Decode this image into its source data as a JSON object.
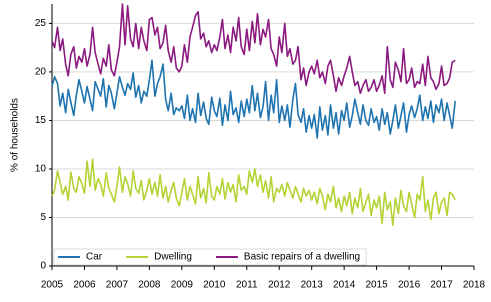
{
  "chart_data": {
    "type": "line",
    "y_label": "% of households",
    "x": [
      2005.0,
      2005.08,
      2005.17,
      2005.25,
      2005.33,
      2005.42,
      2005.5,
      2005.58,
      2005.67,
      2005.75,
      2005.83,
      2005.92,
      2006.0,
      2006.08,
      2006.17,
      2006.25,
      2006.33,
      2006.42,
      2006.5,
      2006.58,
      2006.67,
      2006.75,
      2006.83,
      2006.92,
      2007.0,
      2007.08,
      2007.17,
      2007.25,
      2007.33,
      2007.42,
      2007.5,
      2007.58,
      2007.67,
      2007.75,
      2007.83,
      2007.92,
      2008.0,
      2008.08,
      2008.17,
      2008.25,
      2008.33,
      2008.42,
      2008.5,
      2008.58,
      2008.67,
      2008.75,
      2008.83,
      2008.92,
      2009.0,
      2009.08,
      2009.17,
      2009.25,
      2009.33,
      2009.42,
      2009.5,
      2009.58,
      2009.67,
      2009.75,
      2009.83,
      2009.92,
      2010.0,
      2010.08,
      2010.17,
      2010.25,
      2010.33,
      2010.42,
      2010.5,
      2010.58,
      2010.67,
      2010.75,
      2010.83,
      2010.92,
      2011.0,
      2011.08,
      2011.17,
      2011.25,
      2011.33,
      2011.42,
      2011.5,
      2011.58,
      2011.67,
      2011.75,
      2011.83,
      2011.92,
      2012.0,
      2012.08,
      2012.17,
      2012.25,
      2012.33,
      2012.42,
      2012.5,
      2012.58,
      2012.67,
      2012.75,
      2012.83,
      2012.92,
      2013.0,
      2013.08,
      2013.17,
      2013.25,
      2013.33,
      2013.42,
      2013.5,
      2013.58,
      2013.67,
      2013.75,
      2013.83,
      2013.92,
      2014.0,
      2014.08,
      2014.17,
      2014.25,
      2014.33,
      2014.42,
      2014.5,
      2014.58,
      2014.67,
      2014.75,
      2014.83,
      2014.92,
      2015.0,
      2015.08,
      2015.17,
      2015.25,
      2015.33,
      2015.42,
      2015.5,
      2015.58,
      2015.67,
      2015.75,
      2015.83,
      2015.92,
      2016.0,
      2016.08,
      2016.17,
      2016.25,
      2016.33,
      2016.42,
      2016.5,
      2016.58,
      2016.67,
      2016.75,
      2016.83,
      2016.92,
      2017.0,
      2017.08,
      2017.17,
      2017.25,
      2017.33,
      2017.42
    ],
    "series": [
      {
        "name": "Car",
        "color": "#1f74b0",
        "values": [
          18.5,
          19.5,
          18.8,
          16.5,
          17.8,
          15.8,
          18.2,
          16.9,
          15.5,
          17.6,
          19.2,
          18.0,
          16.8,
          18.5,
          17.2,
          16.0,
          19.0,
          18.2,
          17.5,
          19.3,
          16.4,
          18.6,
          17.8,
          16.2,
          17.8,
          19.5,
          18.4,
          17.6,
          18.8,
          18.2,
          19.9,
          17.4,
          18.6,
          16.8,
          18.0,
          17.5,
          19.2,
          21.2,
          17.5,
          18.8,
          19.5,
          20.8,
          17.2,
          16.0,
          17.8,
          15.6,
          16.3,
          16.0,
          16.5,
          15.2,
          17.6,
          15.0,
          16.2,
          14.8,
          17.8,
          15.5,
          16.9,
          15.2,
          14.6,
          17.4,
          16.0,
          15.4,
          17.3,
          14.5,
          16.6,
          15.0,
          18.0,
          15.6,
          16.3,
          14.8,
          17.0,
          15.4,
          17.2,
          15.8,
          18.6,
          16.0,
          17.8,
          15.3,
          16.4,
          19.0,
          15.0,
          17.6,
          15.8,
          19.2,
          14.8,
          16.5,
          15.0,
          16.6,
          14.3,
          17.2,
          18.8,
          15.6,
          14.8,
          16.2,
          13.8,
          15.5,
          14.2,
          15.6,
          13.2,
          16.4,
          14.0,
          15.5,
          13.5,
          16.6,
          14.2,
          15.8,
          13.6,
          16.0,
          15.0,
          16.8,
          14.3,
          15.5,
          17.2,
          15.8,
          14.6,
          16.6,
          15.0,
          14.5,
          16.2,
          14.8,
          15.4,
          14.0,
          16.2,
          14.6,
          15.8,
          13.6,
          15.0,
          16.6,
          14.2,
          15.5,
          16.8,
          13.8,
          15.6,
          16.5,
          15.3,
          16.2,
          17.6,
          15.0,
          16.4,
          15.2,
          17.0,
          14.8,
          16.6,
          15.8,
          17.2,
          15.0,
          16.8,
          15.5,
          14.2,
          17.0
        ]
      },
      {
        "name": "Dwelling",
        "color": "#b4d334",
        "values": [
          7.2,
          7.8,
          9.8,
          8.6,
          7.4,
          8.2,
          6.8,
          9.7,
          8.0,
          7.6,
          9.2,
          8.5,
          7.5,
          10.8,
          8.2,
          11.0,
          7.8,
          9.0,
          8.4,
          7.2,
          9.6,
          8.0,
          7.4,
          6.6,
          8.2,
          10.2,
          7.6,
          9.2,
          8.5,
          7.2,
          9.8,
          8.0,
          7.5,
          8.8,
          6.8,
          7.8,
          9.0,
          7.4,
          8.6,
          7.2,
          9.4,
          7.0,
          8.2,
          6.6,
          7.8,
          8.6,
          7.0,
          6.2,
          7.6,
          9.0,
          6.8,
          8.2,
          7.4,
          6.4,
          9.2,
          7.0,
          8.0,
          6.5,
          9.6,
          7.2,
          6.8,
          8.2,
          7.4,
          9.0,
          6.9,
          8.6,
          7.6,
          8.4,
          6.6,
          9.4,
          7.8,
          8.2,
          7.4,
          9.8,
          8.6,
          10.0,
          8.2,
          9.4,
          7.6,
          8.8,
          7.0,
          9.2,
          6.6,
          8.0,
          7.6,
          8.4,
          7.2,
          8.6,
          7.8,
          7.0,
          8.2,
          7.4,
          6.6,
          8.0,
          7.2,
          7.8,
          6.8,
          7.6,
          6.4,
          8.0,
          7.2,
          5.8,
          7.4,
          6.6,
          8.2,
          6.0,
          7.0,
          5.6,
          7.2,
          6.2,
          7.6,
          5.4,
          7.0,
          6.0,
          8.0,
          5.6,
          6.6,
          7.4,
          5.2,
          6.8,
          6.0,
          7.2,
          4.4,
          7.6,
          5.8,
          6.6,
          4.2,
          7.0,
          5.4,
          7.8,
          6.2,
          5.6,
          7.6,
          6.4,
          5.0,
          7.4,
          6.8,
          9.2,
          5.6,
          6.8,
          4.8,
          7.0,
          7.6,
          5.4,
          6.6,
          7.0,
          5.2,
          7.6,
          7.4,
          6.8
        ]
      },
      {
        "name": "Basic repairs of a dwelling",
        "color": "#8b1a80",
        "values": [
          23.2,
          22.5,
          24.6,
          22.2,
          23.4,
          20.8,
          19.6,
          21.8,
          22.6,
          20.4,
          21.6,
          21.0,
          22.4,
          20.6,
          21.8,
          24.6,
          22.0,
          20.8,
          19.8,
          21.4,
          20.6,
          22.8,
          20.2,
          19.6,
          21.0,
          22.6,
          27.0,
          22.8,
          26.8,
          23.4,
          22.6,
          25.0,
          22.4,
          24.6,
          23.2,
          22.2,
          25.4,
          25.6,
          23.8,
          24.6,
          22.4,
          23.0,
          24.8,
          22.2,
          21.0,
          22.6,
          20.4,
          20.0,
          20.6,
          22.8,
          21.0,
          23.6,
          24.6,
          25.8,
          26.2,
          23.4,
          24.0,
          22.6,
          23.2,
          22.0,
          22.8,
          22.2,
          23.6,
          25.4,
          22.4,
          23.8,
          22.0,
          24.6,
          23.2,
          25.6,
          22.6,
          21.8,
          24.4,
          22.2,
          25.2,
          23.0,
          26.0,
          22.8,
          24.4,
          23.6,
          25.4,
          22.4,
          21.8,
          20.6,
          23.6,
          22.0,
          25.0,
          21.6,
          22.4,
          20.8,
          21.2,
          22.6,
          19.2,
          20.4,
          18.6,
          20.0,
          20.6,
          19.8,
          21.2,
          19.4,
          20.0,
          18.8,
          20.6,
          21.2,
          19.6,
          18.0,
          19.4,
          18.6,
          19.6,
          20.4,
          21.6,
          20.0,
          18.6,
          19.0,
          17.8,
          18.6,
          19.2,
          18.0,
          18.4,
          19.2,
          18.0,
          18.6,
          19.6,
          17.8,
          22.6,
          19.2,
          18.4,
          21.0,
          20.2,
          19.0,
          22.4,
          18.8,
          19.2,
          20.4,
          18.4,
          19.0,
          18.8,
          20.8,
          18.6,
          21.6,
          19.4,
          19.0,
          18.2,
          18.8,
          20.6,
          18.6,
          18.8,
          19.4,
          21.0,
          21.2
        ]
      }
    ],
    "xlim": [
      2005,
      2018
    ],
    "xticks": [
      2005,
      2006,
      2007,
      2008,
      2009,
      2010,
      2011,
      2012,
      2013,
      2014,
      2015,
      2016,
      2017,
      2018
    ],
    "ylim": [
      0,
      27
    ],
    "yticks": [
      0,
      5,
      10,
      15,
      20,
      25
    ],
    "grid": true,
    "legend": "lower left"
  }
}
